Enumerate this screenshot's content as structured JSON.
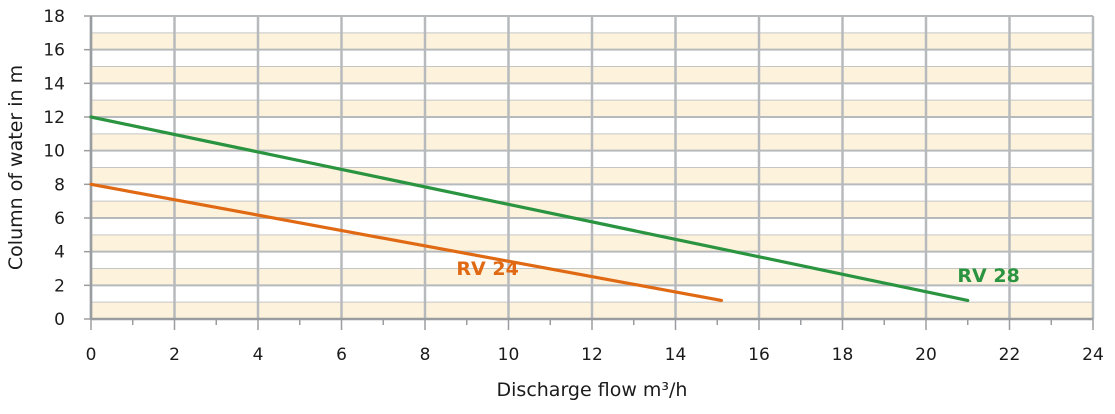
{
  "chart_data": {
    "type": "line",
    "title": "",
    "xlabel": "Discharge flow m³/h",
    "ylabel": "Column of water in m",
    "xlim": [
      0,
      24
    ],
    "ylim": [
      0,
      18
    ],
    "x_ticks": [
      0,
      2,
      4,
      6,
      8,
      10,
      12,
      14,
      16,
      18,
      20,
      22,
      24
    ],
    "y_ticks": [
      0,
      2,
      4,
      6,
      8,
      10,
      12,
      14,
      16,
      18
    ],
    "grid": true,
    "legend": "none",
    "series": [
      {
        "name": "RV 24",
        "color": "#e06a14",
        "x": [
          0,
          15.1
        ],
        "y": [
          8,
          1.1
        ]
      },
      {
        "name": "RV 28",
        "color": "#2a9440",
        "x": [
          0,
          21
        ],
        "y": [
          12,
          1.1
        ]
      }
    ]
  },
  "colors": {
    "plot_band_light": "#fdf2dc",
    "plot_band_white": "#ffffff",
    "grid": "#b7babd",
    "axis": "#9a9da0"
  }
}
